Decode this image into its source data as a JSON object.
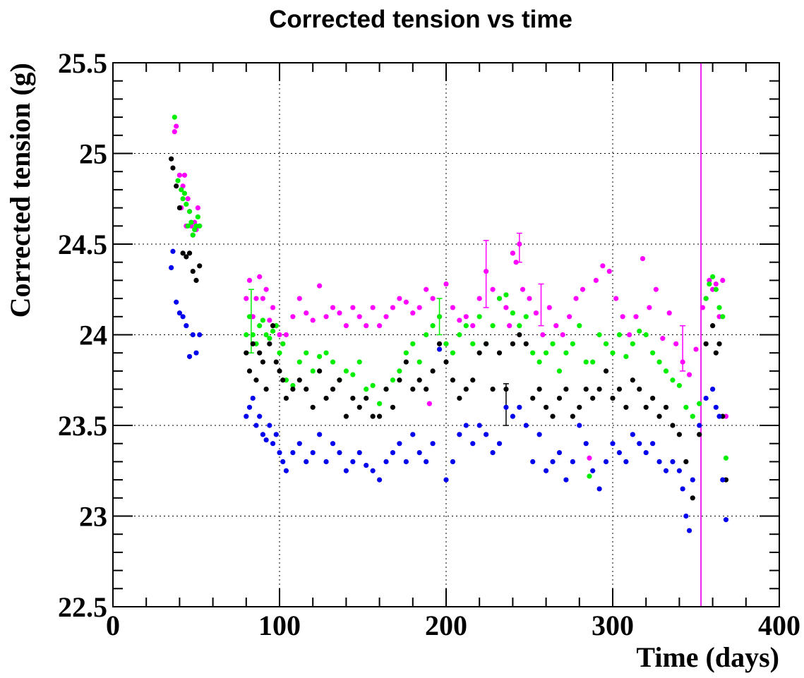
{
  "chart_data": {
    "type": "scatter",
    "title": "Corrected tension vs time",
    "xlabel": "Time (days)",
    "ylabel": "Corrected tension (g)",
    "xlim": [
      0,
      400
    ],
    "ylim": [
      22.5,
      25.5
    ],
    "x_ticks": [
      0,
      100,
      200,
      300,
      400
    ],
    "x_tick_labels": [
      "0",
      "100",
      "200",
      "300",
      "400"
    ],
    "y_ticks": [
      22.5,
      23,
      23.5,
      24,
      24.5,
      25,
      25.5
    ],
    "y_tick_labels": [
      "22.5",
      "23",
      "23.5",
      "24",
      "24.5",
      "25",
      "25.5"
    ],
    "grid": true,
    "vertical_line": {
      "x": 353,
      "color": "#ee22ee"
    },
    "series": [
      {
        "color": "#ff00ff",
        "x": [
          37,
          38,
          40,
          41,
          42,
          43,
          44,
          45,
          46,
          47,
          48,
          49,
          50,
          51,
          52,
          80,
          82,
          84,
          86,
          88,
          90,
          92,
          94,
          96,
          98,
          100,
          102,
          104,
          108,
          112,
          116,
          120,
          124,
          128,
          132,
          136,
          140,
          144,
          148,
          152,
          156,
          160,
          164,
          168,
          172,
          176,
          180,
          184,
          188,
          190,
          192,
          196,
          200,
          204,
          208,
          212,
          216,
          220,
          224,
          228,
          232,
          236,
          238,
          240,
          242,
          244,
          246,
          250,
          254,
          258,
          262,
          266,
          270,
          274,
          278,
          282,
          286,
          290,
          294,
          298,
          302,
          306,
          310,
          314,
          318,
          322,
          326,
          330,
          334,
          338,
          342,
          346,
          350,
          354,
          356,
          358,
          360,
          362,
          364,
          366,
          368
        ],
        "y": [
          25.12,
          25.15,
          24.88,
          24.7,
          24.82,
          24.88,
          24.6,
          24.75,
          24.68,
          24.6,
          24.55,
          24.62,
          24.58,
          24.7,
          24.6,
          24.2,
          24.3,
          24.1,
          24.2,
          24.32,
          24.2,
          24.25,
          24.08,
          24.15,
          24.05,
          24.0,
          23.95,
          24.0,
          24.1,
          24.2,
          24.12,
          24.08,
          24.27,
          24.1,
          24.15,
          24.12,
          24.05,
          24.15,
          24.1,
          24.05,
          24.15,
          24.05,
          24.1,
          24.15,
          24.2,
          24.18,
          24.12,
          24.15,
          24.25,
          23.62,
          24.2,
          24.1,
          24.28,
          24.15,
          24.08,
          24.1,
          24.05,
          24.2,
          24.35,
          24.25,
          24.2,
          24.15,
          24.05,
          24.45,
          24.4,
          24.5,
          24.25,
          24.2,
          24.12,
          24.0,
          24.15,
          24.05,
          24.0,
          24.1,
          24.2,
          24.25,
          23.32,
          24.3,
          24.38,
          24.35,
          24.2,
          24.1,
          24.0,
          24.1,
          24.42,
          24.15,
          24.25,
          23.98,
          24.12,
          23.95,
          23.85,
          23.78,
          23.92,
          24.15,
          24.2,
          24.3,
          24.25,
          24.28,
          24.1,
          24.3,
          23.55
        ]
      },
      {
        "color": "#00ee00",
        "x": [
          37,
          39,
          41,
          42,
          43,
          44,
          45,
          46,
          47,
          48,
          49,
          50,
          51,
          52,
          80,
          82,
          84,
          86,
          88,
          90,
          92,
          94,
          96,
          98,
          100,
          102,
          104,
          108,
          112,
          116,
          120,
          124,
          128,
          132,
          136,
          140,
          144,
          148,
          152,
          156,
          160,
          164,
          168,
          172,
          176,
          180,
          184,
          188,
          192,
          196,
          200,
          204,
          208,
          212,
          216,
          220,
          224,
          228,
          232,
          236,
          240,
          244,
          248,
          252,
          256,
          260,
          264,
          268,
          272,
          276,
          280,
          284,
          286,
          288,
          292,
          296,
          300,
          304,
          308,
          312,
          316,
          320,
          324,
          328,
          332,
          336,
          340,
          344,
          348,
          352,
          356,
          358,
          360,
          362,
          364,
          366,
          368
        ],
        "y": [
          25.2,
          24.85,
          24.8,
          24.75,
          24.78,
          24.72,
          24.6,
          24.68,
          24.62,
          24.55,
          24.58,
          24.6,
          24.65,
          24.6,
          24.0,
          24.1,
          24.0,
          23.95,
          24.05,
          24.08,
          24.0,
          23.98,
          24.02,
          24.05,
          23.9,
          23.95,
          23.75,
          23.72,
          23.85,
          23.9,
          23.8,
          23.88,
          23.9,
          23.85,
          23.75,
          23.8,
          23.78,
          23.85,
          23.7,
          23.72,
          23.62,
          23.7,
          23.75,
          23.8,
          23.9,
          23.95,
          23.85,
          24.0,
          24.05,
          24.1,
          23.95,
          23.9,
          24.0,
          24.05,
          23.95,
          24.1,
          23.95,
          24.05,
          24.2,
          24.22,
          24.12,
          24.05,
          24.1,
          23.9,
          23.85,
          23.9,
          23.95,
          23.8,
          23.9,
          23.95,
          24.05,
          23.85,
          23.22,
          23.85,
          24.0,
          23.95,
          23.9,
          24.0,
          23.88,
          23.95,
          24.02,
          24.0,
          23.9,
          23.85,
          23.8,
          23.75,
          23.72,
          23.6,
          23.55,
          23.62,
          24.2,
          24.28,
          24.32,
          24.25,
          24.15,
          24.1,
          23.32
        ]
      },
      {
        "color": "#000000",
        "x": [
          35,
          36,
          38,
          40,
          42,
          44,
          46,
          48,
          50,
          52,
          80,
          82,
          84,
          86,
          88,
          90,
          92,
          94,
          96,
          98,
          100,
          102,
          104,
          108,
          112,
          116,
          120,
          124,
          128,
          132,
          136,
          140,
          144,
          148,
          152,
          156,
          160,
          164,
          168,
          172,
          176,
          180,
          184,
          188,
          192,
          196,
          200,
          204,
          208,
          212,
          216,
          220,
          224,
          228,
          232,
          236,
          240,
          244,
          248,
          252,
          256,
          260,
          264,
          268,
          272,
          276,
          280,
          284,
          288,
          292,
          296,
          300,
          304,
          308,
          312,
          316,
          320,
          324,
          328,
          332,
          336,
          340,
          344,
          348,
          352,
          356,
          360,
          362,
          364,
          366,
          368
        ],
        "y": [
          24.97,
          24.92,
          24.82,
          24.7,
          24.45,
          24.43,
          24.45,
          24.35,
          24.3,
          24.38,
          23.9,
          23.8,
          23.95,
          23.75,
          23.9,
          23.85,
          23.7,
          23.95,
          24.05,
          23.85,
          23.8,
          23.75,
          23.65,
          23.7,
          23.75,
          23.7,
          23.6,
          23.8,
          23.65,
          23.7,
          23.75,
          23.55,
          23.65,
          23.6,
          23.65,
          23.55,
          23.55,
          23.7,
          23.6,
          23.75,
          23.85,
          23.7,
          23.75,
          23.7,
          23.8,
          23.95,
          23.85,
          23.75,
          23.65,
          23.7,
          23.75,
          23.9,
          23.95,
          23.7,
          23.9,
          23.7,
          23.95,
          24.0,
          23.95,
          23.65,
          23.7,
          23.6,
          23.55,
          23.65,
          23.7,
          23.55,
          23.6,
          23.7,
          23.65,
          23.7,
          23.8,
          23.65,
          23.7,
          23.6,
          23.75,
          23.7,
          23.6,
          23.65,
          23.55,
          23.6,
          23.5,
          23.45,
          23.3,
          23.1,
          23.45,
          23.95,
          24.05,
          23.9,
          23.95,
          23.55,
          23.2
        ]
      },
      {
        "color": "#0000ee",
        "x": [
          35,
          36,
          38,
          40,
          42,
          44,
          46,
          48,
          50,
          52,
          80,
          82,
          84,
          86,
          88,
          90,
          92,
          94,
          96,
          98,
          100,
          102,
          104,
          108,
          112,
          116,
          120,
          124,
          128,
          132,
          136,
          140,
          144,
          148,
          152,
          156,
          160,
          164,
          168,
          172,
          176,
          180,
          184,
          188,
          192,
          196,
          200,
          204,
          208,
          212,
          216,
          220,
          224,
          228,
          232,
          236,
          240,
          244,
          248,
          252,
          256,
          260,
          264,
          268,
          272,
          276,
          280,
          284,
          288,
          292,
          296,
          300,
          304,
          308,
          312,
          316,
          320,
          324,
          328,
          332,
          336,
          340,
          342,
          344,
          346,
          348,
          352,
          356,
          360,
          362,
          364,
          366,
          368
        ],
        "y": [
          24.37,
          24.46,
          24.18,
          24.12,
          24.1,
          24.05,
          23.88,
          24.0,
          23.9,
          24.0,
          23.55,
          23.6,
          23.65,
          23.5,
          23.55,
          23.45,
          23.42,
          23.5,
          23.4,
          23.45,
          23.35,
          23.3,
          23.25,
          23.35,
          23.4,
          23.3,
          23.35,
          23.45,
          23.3,
          23.4,
          23.35,
          23.25,
          23.3,
          23.35,
          23.28,
          23.25,
          23.2,
          23.3,
          23.35,
          23.4,
          23.3,
          23.45,
          23.35,
          23.3,
          23.4,
          23.92,
          23.2,
          23.3,
          23.45,
          23.5,
          23.4,
          23.5,
          23.45,
          23.35,
          23.4,
          23.6,
          23.55,
          23.6,
          23.5,
          23.3,
          23.45,
          23.25,
          23.3,
          23.35,
          23.2,
          23.3,
          23.5,
          23.4,
          23.25,
          23.15,
          23.3,
          23.4,
          23.35,
          23.3,
          23.45,
          23.4,
          23.35,
          23.4,
          23.3,
          23.25,
          23.3,
          23.25,
          23.15,
          23.0,
          22.92,
          23.2,
          23.5,
          23.65,
          23.7,
          23.6,
          23.55,
          23.2,
          22.98
        ]
      }
    ],
    "error_bars": [
      {
        "color": "#00ee00",
        "x": 83,
        "y": 24.05,
        "low": 23.9,
        "high": 24.25
      },
      {
        "color": "#ff00ff",
        "x": 224,
        "y": 24.3,
        "low": 24.15,
        "high": 24.52
      },
      {
        "color": "#ff00ff",
        "x": 244,
        "y": 24.48,
        "low": 24.4,
        "high": 24.56
      },
      {
        "color": "#ff00ff",
        "x": 257,
        "y": 24.15,
        "low": 24.05,
        "high": 24.28
      },
      {
        "color": "#000000",
        "x": 236,
        "y": 23.65,
        "low": 23.5,
        "high": 23.73
      },
      {
        "color": "#ff00ff",
        "x": 342,
        "y": 23.95,
        "low": 23.8,
        "high": 24.05
      },
      {
        "color": "#00ee00",
        "x": 196,
        "y": 24.1,
        "low": 24.0,
        "high": 24.2
      }
    ]
  }
}
